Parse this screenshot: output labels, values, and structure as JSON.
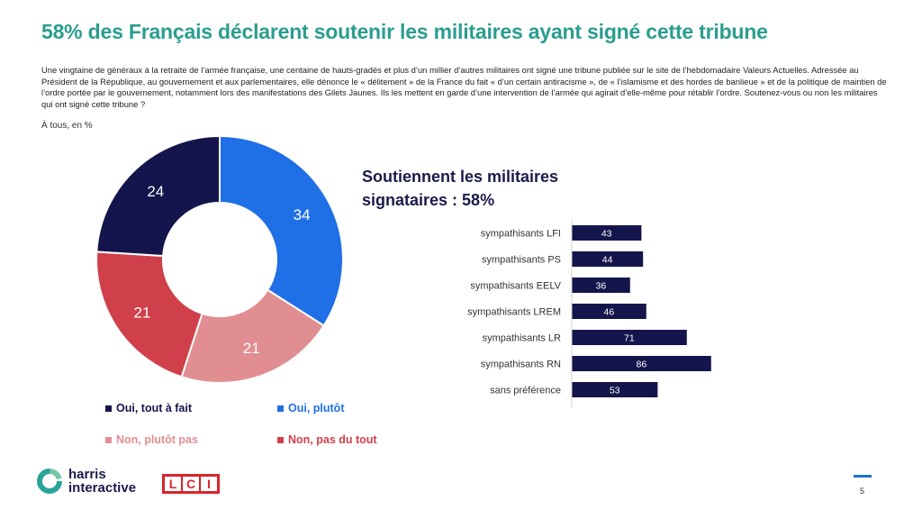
{
  "header": {
    "title": "58% des Français déclarent soutenir les militaires ayant signé cette tribune",
    "question": "Une vingtaine de généraux à la retraite de l’armée française, une centaine de hauts-gradés et plus d’un millier d’autres militaires ont signé une tribune publiée  sur le site de l’hebdomadaire Valeurs Actuelles. Adressée au Président de la République, au gouvernement et aux parlementaires, elle dénonce le « délitement » de la France du fait « d’un certain antiracisme », de « l’islamisme et des hordes de banlieue » et de la politique de maintien de l’ordre portée par le gouvernement, notamment lors des manifestations des Gilets Jaunes. Ils les mettent en garde d’une intervention de l’armée qui agirait d’elle-même pour rétablir l’ordre. Soutenez-vous ou non les militaires qui ont signé cette tribune ?",
    "base": "À tous, en %"
  },
  "chart_data": [
    {
      "type": "pie",
      "donut": true,
      "categories": [
        "Oui, plutôt",
        "Non, plutôt pas",
        "Non, pas du tout",
        "Oui, tout à fait"
      ],
      "values": [
        34,
        21,
        21,
        24
      ],
      "colors": [
        "#1f6fe6",
        "#e08e92",
        "#d0404b",
        "#15154d"
      ],
      "legend": [
        {
          "label": "Oui, tout à fait",
          "color": "#15154d"
        },
        {
          "label": "Oui, plutôt",
          "color": "#1f6fe6"
        },
        {
          "label": "Non, plutôt pas",
          "color": "#e08e92"
        },
        {
          "label": "Non, pas du tout",
          "color": "#d0404b"
        }
      ],
      "legend_position": "bottom"
    },
    {
      "type": "bar",
      "orientation": "horizontal",
      "title": "Soutiennent les militaires signataires : 58%",
      "categories": [
        "sympathisants LFI",
        "sympathisants PS",
        "sympathisants EELV",
        "sympathisants LREM",
        "sympathisants LR",
        "sympathisants RN",
        "sans préférence"
      ],
      "values": [
        43,
        44,
        36,
        46,
        71,
        86,
        53
      ],
      "color": "#15154d",
      "xlim": [
        0,
        100
      ]
    }
  ],
  "footer": {
    "logo_text_line1": "harris",
    "logo_text_line2": "interactive",
    "partner_logo_letters": [
      "L",
      "C",
      "I"
    ],
    "page_number": "5",
    "accent_color": "#1f6fd1"
  }
}
